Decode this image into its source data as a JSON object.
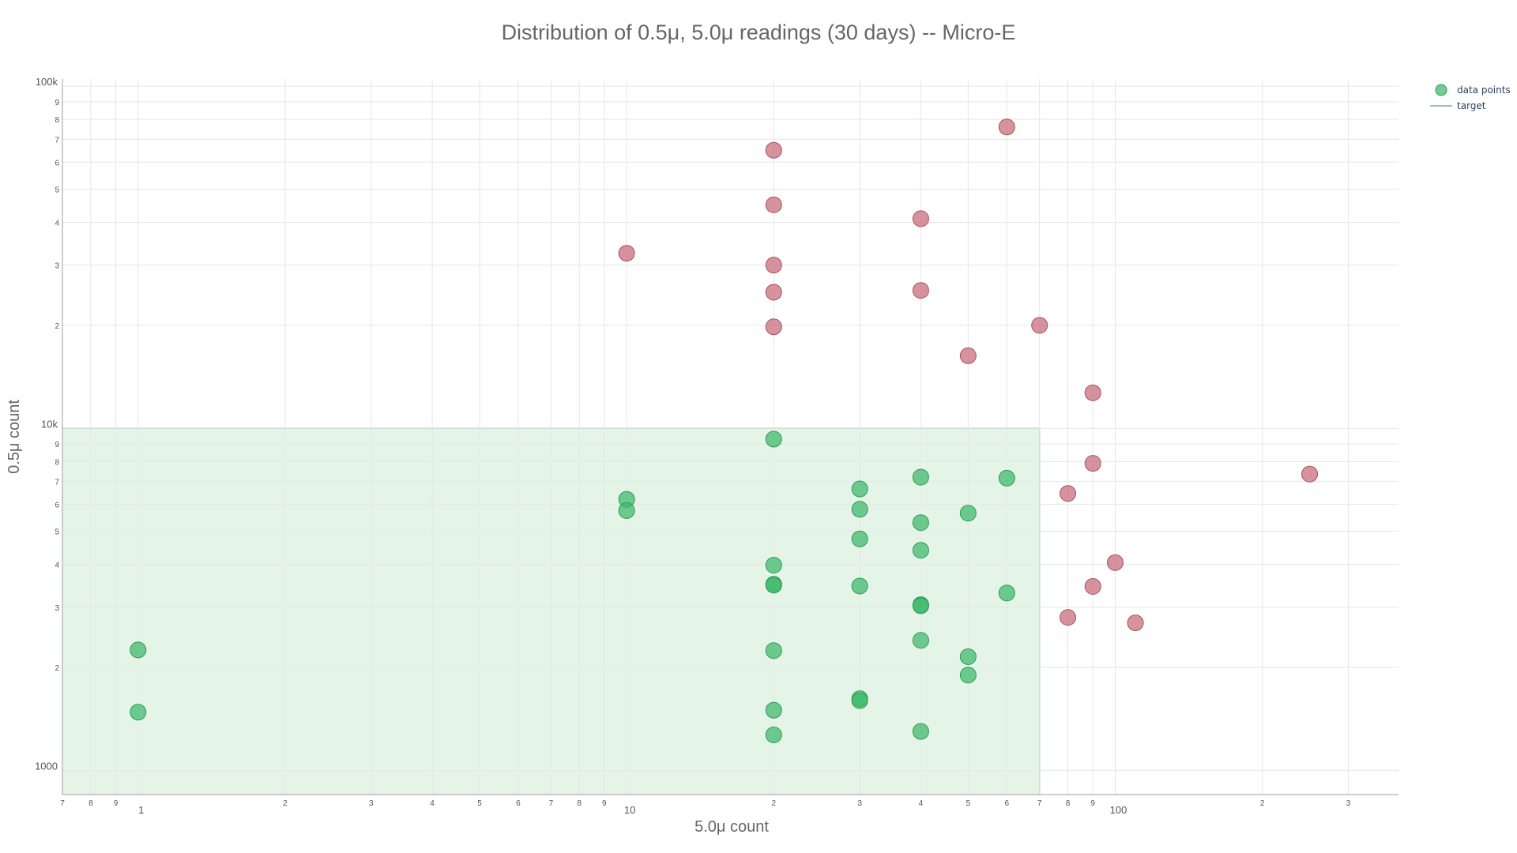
{
  "chart_data": {
    "type": "scatter",
    "title": "Distribution of 0.5μ, 5.0μ readings (30 days) -- Micro-E",
    "xlabel": "5.0μ count",
    "ylabel": "0.5μ count",
    "x_scale": "log",
    "y_scale": "log",
    "xlim": [
      0.7,
      380
    ],
    "ylim": [
      850,
      105000
    ],
    "grid": true,
    "legend_position": "top-right",
    "x_major_tick_labels": [
      {
        "value": 1,
        "label": "1"
      },
      {
        "value": 10,
        "label": "10"
      },
      {
        "value": 100,
        "label": "100"
      }
    ],
    "x_minor_tick_labels": [
      {
        "value": 0.7,
        "label": "7"
      },
      {
        "value": 0.8,
        "label": "8"
      },
      {
        "value": 0.9,
        "label": "9"
      },
      {
        "value": 2,
        "label": "2"
      },
      {
        "value": 3,
        "label": "3"
      },
      {
        "value": 4,
        "label": "4"
      },
      {
        "value": 5,
        "label": "5"
      },
      {
        "value": 6,
        "label": "6"
      },
      {
        "value": 7,
        "label": "7"
      },
      {
        "value": 8,
        "label": "8"
      },
      {
        "value": 9,
        "label": "9"
      },
      {
        "value": 20,
        "label": "2"
      },
      {
        "value": 30,
        "label": "3"
      },
      {
        "value": 40,
        "label": "4"
      },
      {
        "value": 50,
        "label": "5"
      },
      {
        "value": 60,
        "label": "6"
      },
      {
        "value": 70,
        "label": "7"
      },
      {
        "value": 80,
        "label": "8"
      },
      {
        "value": 90,
        "label": "9"
      },
      {
        "value": 200,
        "label": "2"
      },
      {
        "value": 300,
        "label": "3"
      }
    ],
    "y_major_tick_labels": [
      {
        "value": 1000,
        "label": "1000"
      },
      {
        "value": 10000,
        "label": "10k"
      },
      {
        "value": 100000,
        "label": "100k"
      }
    ],
    "y_minor_tick_labels": [
      {
        "value": 2000,
        "label": "2"
      },
      {
        "value": 3000,
        "label": "3"
      },
      {
        "value": 4000,
        "label": "4"
      },
      {
        "value": 5000,
        "label": "5"
      },
      {
        "value": 6000,
        "label": "6"
      },
      {
        "value": 7000,
        "label": "7"
      },
      {
        "value": 8000,
        "label": "8"
      },
      {
        "value": 9000,
        "label": "9"
      },
      {
        "value": 20000,
        "label": "2"
      },
      {
        "value": 30000,
        "label": "3"
      },
      {
        "value": 40000,
        "label": "4"
      },
      {
        "value": 50000,
        "label": "5"
      },
      {
        "value": 60000,
        "label": "6"
      },
      {
        "value": 70000,
        "label": "7"
      },
      {
        "value": 80000,
        "label": "8"
      },
      {
        "value": 90000,
        "label": "9"
      }
    ],
    "target_region": {
      "x_max": 70,
      "y_max": 10000
    },
    "legend": [
      {
        "label": "data points",
        "kind": "marker"
      },
      {
        "label": "target",
        "kind": "line"
      }
    ],
    "colors": {
      "in_target": "#3cb96a",
      "out_of_target": "#c66a78",
      "target_fill": "#e4f5e8",
      "target_line": "#8ccc9c"
    },
    "series": [
      {
        "name": "data points",
        "points": [
          {
            "x": 1,
            "y": 2250,
            "in_target": true
          },
          {
            "x": 1,
            "y": 1480,
            "in_target": true
          },
          {
            "x": 10,
            "y": 6200,
            "in_target": true
          },
          {
            "x": 10,
            "y": 5750,
            "in_target": true
          },
          {
            "x": 20,
            "y": 9300,
            "in_target": true
          },
          {
            "x": 20,
            "y": 3980,
            "in_target": true
          },
          {
            "x": 20,
            "y": 3500,
            "in_target": true
          },
          {
            "x": 20,
            "y": 3480,
            "in_target": true
          },
          {
            "x": 20,
            "y": 2240,
            "in_target": true
          },
          {
            "x": 20,
            "y": 1500,
            "in_target": true
          },
          {
            "x": 20,
            "y": 1270,
            "in_target": true
          },
          {
            "x": 30,
            "y": 6650,
            "in_target": true
          },
          {
            "x": 30,
            "y": 5800,
            "in_target": true
          },
          {
            "x": 30,
            "y": 4750,
            "in_target": true
          },
          {
            "x": 30,
            "y": 3460,
            "in_target": true
          },
          {
            "x": 30,
            "y": 1620,
            "in_target": true
          },
          {
            "x": 30,
            "y": 1600,
            "in_target": true
          },
          {
            "x": 40,
            "y": 7200,
            "in_target": true
          },
          {
            "x": 40,
            "y": 5300,
            "in_target": true
          },
          {
            "x": 40,
            "y": 4400,
            "in_target": true
          },
          {
            "x": 40,
            "y": 3050,
            "in_target": true
          },
          {
            "x": 40,
            "y": 3030,
            "in_target": true
          },
          {
            "x": 40,
            "y": 2400,
            "in_target": true
          },
          {
            "x": 40,
            "y": 1300,
            "in_target": true
          },
          {
            "x": 50,
            "y": 5650,
            "in_target": true
          },
          {
            "x": 50,
            "y": 2150,
            "in_target": true
          },
          {
            "x": 50,
            "y": 1900,
            "in_target": true
          },
          {
            "x": 60,
            "y": 7150,
            "in_target": true
          },
          {
            "x": 60,
            "y": 3300,
            "in_target": true
          },
          {
            "x": 10,
            "y": 32500,
            "in_target": false
          },
          {
            "x": 20,
            "y": 65000,
            "in_target": false
          },
          {
            "x": 20,
            "y": 45000,
            "in_target": false
          },
          {
            "x": 20,
            "y": 30000,
            "in_target": false
          },
          {
            "x": 20,
            "y": 25000,
            "in_target": false
          },
          {
            "x": 20,
            "y": 19800,
            "in_target": false
          },
          {
            "x": 40,
            "y": 41000,
            "in_target": false
          },
          {
            "x": 40,
            "y": 25300,
            "in_target": false
          },
          {
            "x": 50,
            "y": 16300,
            "in_target": false
          },
          {
            "x": 60,
            "y": 76000,
            "in_target": false
          },
          {
            "x": 70,
            "y": 20000,
            "in_target": false
          },
          {
            "x": 80,
            "y": 6450,
            "in_target": false
          },
          {
            "x": 80,
            "y": 2800,
            "in_target": false
          },
          {
            "x": 90,
            "y": 12700,
            "in_target": false
          },
          {
            "x": 90,
            "y": 7900,
            "in_target": false
          },
          {
            "x": 90,
            "y": 3450,
            "in_target": false
          },
          {
            "x": 100,
            "y": 4050,
            "in_target": false
          },
          {
            "x": 110,
            "y": 2700,
            "in_target": false
          },
          {
            "x": 250,
            "y": 7350,
            "in_target": false
          }
        ]
      }
    ]
  }
}
